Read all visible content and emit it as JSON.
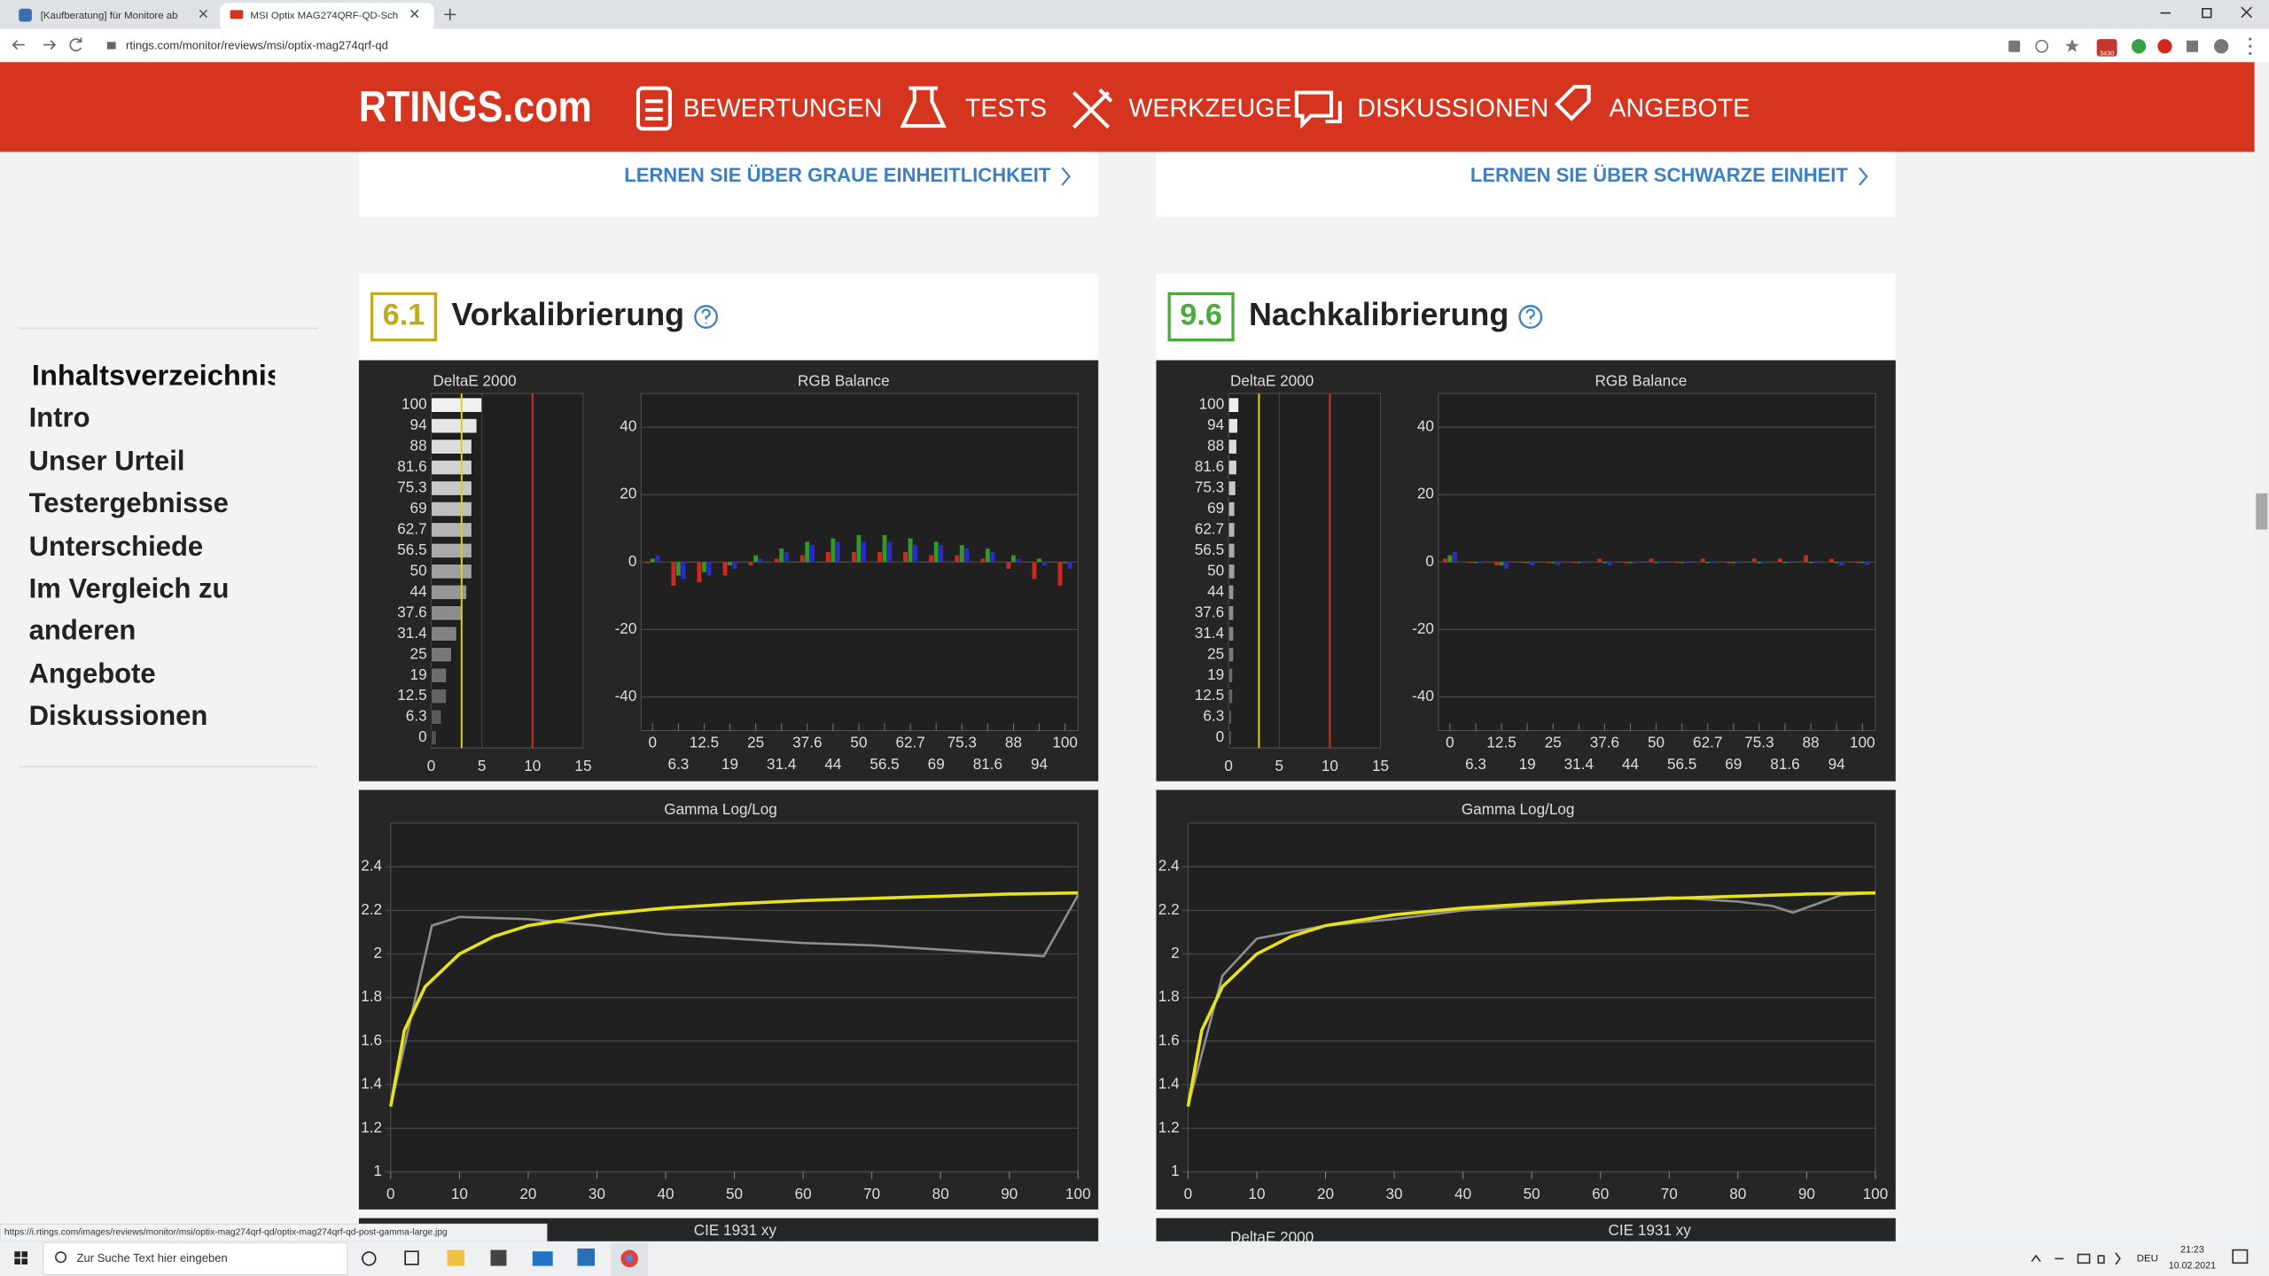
{
  "browser": {
    "tabs": [
      "[Kaufberatung] für Monitore ab",
      "MSI Optix MAG274QRF-QD-Sch"
    ],
    "url": "rtings.com/monitor/reviews/msi/optix-mag274qrf-qd",
    "extension_badge": "3430",
    "status_url": "https://i.rtings.com/images/reviews/monitor/msi/optix-mag274qrf-qd/optix-mag274qrf-qd-post-gamma-large.jpg"
  },
  "nav": {
    "logo": "RTINGS.com",
    "items": [
      "BEWERTUNGEN",
      "TESTS",
      "WERKZEUGE",
      "DISKUSSIONEN",
      "ANGEBOTE"
    ]
  },
  "toc": {
    "title": "Inhaltsverzeichnis",
    "items": [
      "Intro",
      "Unser Urteil",
      "Testergebnisse",
      "Unterschiede",
      "Im Vergleich zu anderen",
      "Angebote",
      "Diskussionen"
    ]
  },
  "panels": [
    {
      "link": "LERNEN SIE ÜBER GRAUE EINHEITLICHKEIT",
      "score": 6.1,
      "score_color": "#c2a91d",
      "title": "Vorkalibrierung",
      "deltae": {
        "title": "DeltaE 2000",
        "categories": [
          0,
          6.3,
          12.5,
          19,
          25,
          31.4,
          37.6,
          44,
          50,
          56.5,
          62.7,
          69,
          75.3,
          81.6,
          88,
          94,
          100
        ],
        "values": [
          0.5,
          1,
          1.5,
          1.5,
          2,
          2.5,
          3,
          3.5,
          4,
          4,
          4,
          4,
          4,
          4,
          4,
          4.5,
          5
        ],
        "xlim": [
          0,
          15
        ],
        "xticks": [
          0,
          5,
          10,
          15
        ],
        "reference_lines": [
          {
            "value": 3,
            "color": "#d8d21e"
          },
          {
            "value": 10,
            "color": "#c8352b"
          }
        ]
      },
      "rgb": {
        "title": "RGB Balance",
        "categories": [
          0,
          6.3,
          12.5,
          19,
          25,
          31.4,
          37.6,
          44,
          50,
          56.5,
          62.7,
          69,
          75.3,
          81.6,
          88,
          94,
          100
        ],
        "ylim": [
          -50,
          50
        ],
        "yticks": [
          40,
          20,
          0,
          -20,
          -40
        ],
        "series": [
          {
            "color": "#d0281c",
            "values": [
              0,
              -7,
              -6,
              -4,
              -1,
              1,
              2,
              3,
              3,
              3,
              3,
              2,
              2,
              1,
              -2,
              -5,
              -7
            ]
          },
          {
            "color": "#2f9a2a",
            "values": [
              1,
              -4,
              -3,
              -1,
              2,
              4,
              6,
              7,
              8,
              8,
              7,
              6,
              5,
              4,
              2,
              1,
              0
            ]
          },
          {
            "color": "#2a2ad0",
            "values": [
              2,
              -5,
              -4,
              -2,
              1,
              3,
              5,
              6,
              6,
              6,
              5,
              5,
              4,
              3,
              1,
              -1,
              -2
            ]
          }
        ]
      },
      "gamma": {
        "title": "Gamma Log/Log",
        "xlim": [
          0,
          100
        ],
        "xticks": [
          0,
          10,
          20,
          30,
          40,
          50,
          60,
          70,
          80,
          90,
          100
        ],
        "ylim": [
          1,
          2.6
        ],
        "yticks": [
          1,
          1.2,
          1.4,
          1.6,
          1.8,
          2,
          2.2,
          2.4
        ],
        "series": [
          {
            "color": "#8e8e8e",
            "x": [
              0,
              6,
              10,
              20,
              30,
              40,
              50,
              60,
              70,
              80,
              90,
              95,
              100
            ],
            "values": [
              1.3,
              2.13,
              2.17,
              2.16,
              2.13,
              2.09,
              2.07,
              2.05,
              2.04,
              2.02,
              2,
              1.99,
              2.27
            ]
          },
          {
            "color": "#e6e21c",
            "x": [
              0,
              2,
              5,
              10,
              15,
              20,
              30,
              40,
              50,
              60,
              70,
              80,
              90,
              100
            ],
            "values": [
              1.3,
              1.65,
              1.85,
              2,
              2.08,
              2.13,
              2.18,
              2.21,
              2.23,
              2.245,
              2.255,
              2.265,
              2.275,
              2.28
            ]
          }
        ]
      },
      "next_titles": [
        "CIE 1931 xy"
      ]
    },
    {
      "link": "LERNEN SIE ÜBER SCHWARZE EINHEIT",
      "score": 9.6,
      "score_color": "#4caa3c",
      "title": "Nachkalibrierung",
      "deltae": {
        "title": "DeltaE 2000",
        "categories": [
          0,
          6.3,
          12.5,
          19,
          25,
          31.4,
          37.6,
          44,
          50,
          56.5,
          62.7,
          69,
          75.3,
          81.6,
          88,
          94,
          100
        ],
        "values": [
          0.3,
          0.3,
          0.4,
          0.4,
          0.5,
          0.5,
          0.5,
          0.5,
          0.6,
          0.6,
          0.6,
          0.6,
          0.7,
          0.8,
          0.8,
          0.9,
          1
        ],
        "xlim": [
          0,
          15
        ],
        "xticks": [
          0,
          5,
          10,
          15
        ],
        "reference_lines": [
          {
            "value": 3,
            "color": "#d8d21e"
          },
          {
            "value": 10,
            "color": "#c8352b"
          }
        ]
      },
      "rgb": {
        "title": "RGB Balance",
        "categories": [
          0,
          6.3,
          12.5,
          19,
          25,
          31.4,
          37.6,
          44,
          50,
          56.5,
          62.7,
          69,
          75.3,
          81.6,
          88,
          94,
          100
        ],
        "ylim": [
          -50,
          50
        ],
        "yticks": [
          40,
          20,
          0,
          -20,
          -40
        ],
        "series": [
          {
            "color": "#d0281c",
            "values": [
              1,
              0,
              -1,
              0,
              0,
              0,
              1,
              0,
              1,
              0,
              1,
              0,
              1,
              1,
              2,
              1,
              0
            ]
          },
          {
            "color": "#2f9a2a",
            "values": [
              2,
              0,
              -1,
              0,
              0,
              0,
              0,
              0,
              0,
              0,
              0,
              0,
              0,
              0,
              0,
              0,
              0
            ]
          },
          {
            "color": "#2a2ad0",
            "values": [
              3,
              0,
              -2,
              -1,
              -1,
              0,
              -1,
              0,
              0,
              0,
              0,
              0,
              0,
              0,
              0,
              -1,
              -1
            ]
          }
        ]
      },
      "gamma": {
        "title": "Gamma Log/Log",
        "xlim": [
          0,
          100
        ],
        "xticks": [
          0,
          10,
          20,
          30,
          40,
          50,
          60,
          70,
          80,
          90,
          100
        ],
        "ylim": [
          1,
          2.6
        ],
        "yticks": [
          1,
          1.2,
          1.4,
          1.6,
          1.8,
          2,
          2.2,
          2.4
        ],
        "series": [
          {
            "color": "#8e8e8e",
            "x": [
              0,
              5,
              10,
              20,
              30,
              40,
              50,
              60,
              70,
              80,
              85,
              88,
              95,
              100
            ],
            "values": [
              1.3,
              1.9,
              2.07,
              2.13,
              2.16,
              2.2,
              2.22,
              2.24,
              2.26,
              2.24,
              2.22,
              2.19,
              2.27,
              2.28
            ]
          },
          {
            "color": "#e6e21c",
            "x": [
              0,
              2,
              5,
              10,
              15,
              20,
              30,
              40,
              50,
              60,
              70,
              80,
              90,
              100
            ],
            "values": [
              1.3,
              1.65,
              1.85,
              2,
              2.08,
              2.13,
              2.18,
              2.21,
              2.23,
              2.245,
              2.255,
              2.265,
              2.275,
              2.28
            ]
          }
        ]
      },
      "next_titles": [
        "DeltaE 2000",
        "CIE 1931 xy"
      ]
    }
  ],
  "taskbar": {
    "search": "Zur Suche Text hier eingeben",
    "language": "DEU",
    "time": "21:23",
    "date": "10.02.2021"
  }
}
